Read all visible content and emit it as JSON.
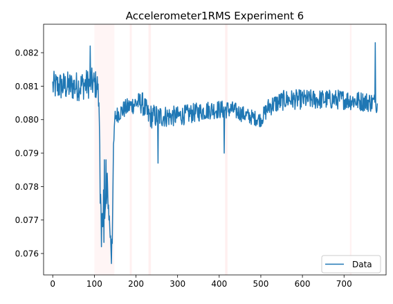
{
  "chart_data": {
    "type": "line",
    "title": "Accelerometer1RMS Experiment 6",
    "xlabel": "",
    "ylabel": "",
    "xlim": [
      -22,
      801
    ],
    "ylim": [
      0.07536,
      0.08285
    ],
    "x_ticks": [
      0,
      100,
      200,
      300,
      400,
      500,
      600,
      700
    ],
    "y_ticks": [
      0.076,
      0.077,
      0.078,
      0.079,
      0.08,
      0.081,
      0.082
    ],
    "y_tick_labels": [
      "0.076",
      "0.077",
      "0.078",
      "0.079",
      "0.080",
      "0.081",
      "0.082"
    ],
    "grid": false,
    "legend": {
      "position": "lower right",
      "entries": [
        {
          "label": "Data",
          "color": "#1f77b4"
        }
      ]
    },
    "shaded_regions": [
      {
        "x": [
          100,
          148
        ],
        "color": "#ff0000",
        "opacity": 0.04
      },
      {
        "x": [
          185,
          190
        ],
        "color": "#ff0000",
        "opacity": 0.06
      },
      {
        "x": [
          230,
          236
        ],
        "color": "#ff0000",
        "opacity": 0.06
      },
      {
        "x": [
          414,
          420
        ],
        "color": "#ff0000",
        "opacity": 0.06
      },
      {
        "x": [
          714,
          718
        ],
        "color": "#ff0000",
        "opacity": 0.05
      }
    ],
    "series": [
      {
        "name": "Data",
        "color": "#1f77b4",
        "n_points": 781,
        "x_range": [
          0,
          780
        ],
        "profile": [
          [
            0,
            0.081
          ],
          [
            30,
            0.081
          ],
          [
            60,
            0.081
          ],
          [
            95,
            0.0811
          ],
          [
            108,
            0.081
          ],
          [
            112,
            0.08
          ],
          [
            116,
            0.0772
          ],
          [
            122,
            0.0765
          ],
          [
            126,
            0.0772
          ],
          [
            132,
            0.0778
          ],
          [
            136,
            0.077
          ],
          [
            140,
            0.0762
          ],
          [
            143,
            0.0768
          ],
          [
            146,
            0.079
          ],
          [
            150,
            0.0801
          ],
          [
            170,
            0.0803
          ],
          [
            200,
            0.0805
          ],
          [
            215,
            0.0805
          ],
          [
            230,
            0.0801
          ],
          [
            300,
            0.0801
          ],
          [
            380,
            0.0803
          ],
          [
            430,
            0.0803
          ],
          [
            470,
            0.0801
          ],
          [
            500,
            0.08
          ],
          [
            520,
            0.0804
          ],
          [
            560,
            0.0806
          ],
          [
            700,
            0.0806
          ],
          [
            780,
            0.0805
          ]
        ],
        "noise": [
          [
            0,
            0.00045
          ],
          [
            108,
            0.00045
          ],
          [
            116,
            0.00035
          ],
          [
            140,
            0.00035
          ],
          [
            150,
            0.00025
          ],
          [
            200,
            0.0003
          ],
          [
            230,
            0.00038
          ],
          [
            300,
            0.0003
          ],
          [
            400,
            0.00028
          ],
          [
            500,
            0.00022
          ],
          [
            520,
            0.0003
          ],
          [
            780,
            0.0003
          ]
        ],
        "spikes": [
          [
            108,
            0.0809
          ],
          [
            110,
            0.0804
          ],
          [
            114,
            0.0775
          ],
          [
            117,
            0.0762
          ],
          [
            122,
            0.0779
          ],
          [
            124,
            0.0788
          ],
          [
            128,
            0.0788
          ],
          [
            131,
            0.0784
          ],
          [
            141,
            0.0757
          ],
          [
            143,
            0.0763
          ],
          [
            148,
            0.0798
          ],
          [
            253,
            0.0787
          ],
          [
            412,
            0.079
          ],
          [
            775,
            0.0796
          ],
          [
            90,
            0.0822
          ],
          [
            775,
            0.0823
          ]
        ]
      }
    ]
  }
}
